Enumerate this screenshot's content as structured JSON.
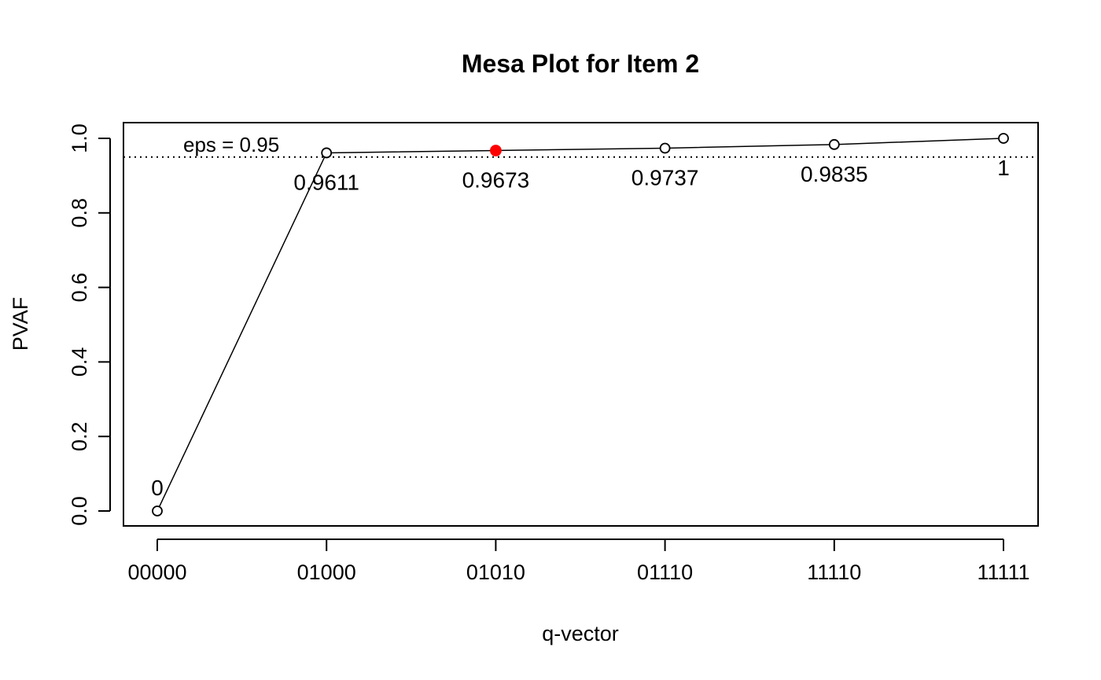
{
  "chart_data": {
    "type": "line",
    "title": "Mesa Plot for Item 2",
    "xlabel": "q-vector",
    "ylabel": "PVAF",
    "categories": [
      "00000",
      "01000",
      "01010",
      "01110",
      "11110",
      "11111"
    ],
    "values": [
      0,
      0.9611,
      0.9673,
      0.9737,
      0.9835,
      1
    ],
    "point_labels": [
      "0",
      "0.9611",
      "0.9673",
      "0.9737",
      "0.9835",
      "1"
    ],
    "highlight_index": 2,
    "ylim": [
      0,
      1
    ],
    "yticks": [
      "0.0",
      "0.2",
      "0.4",
      "0.6",
      "0.8",
      "1.0"
    ],
    "ytick_values": [
      0,
      0.2,
      0.4,
      0.6,
      0.8,
      1.0
    ],
    "eps": 0.95,
    "eps_label": "eps = 0.95",
    "grid": false,
    "colors": {
      "line": "#000000",
      "highlight": "#ff0000"
    }
  }
}
